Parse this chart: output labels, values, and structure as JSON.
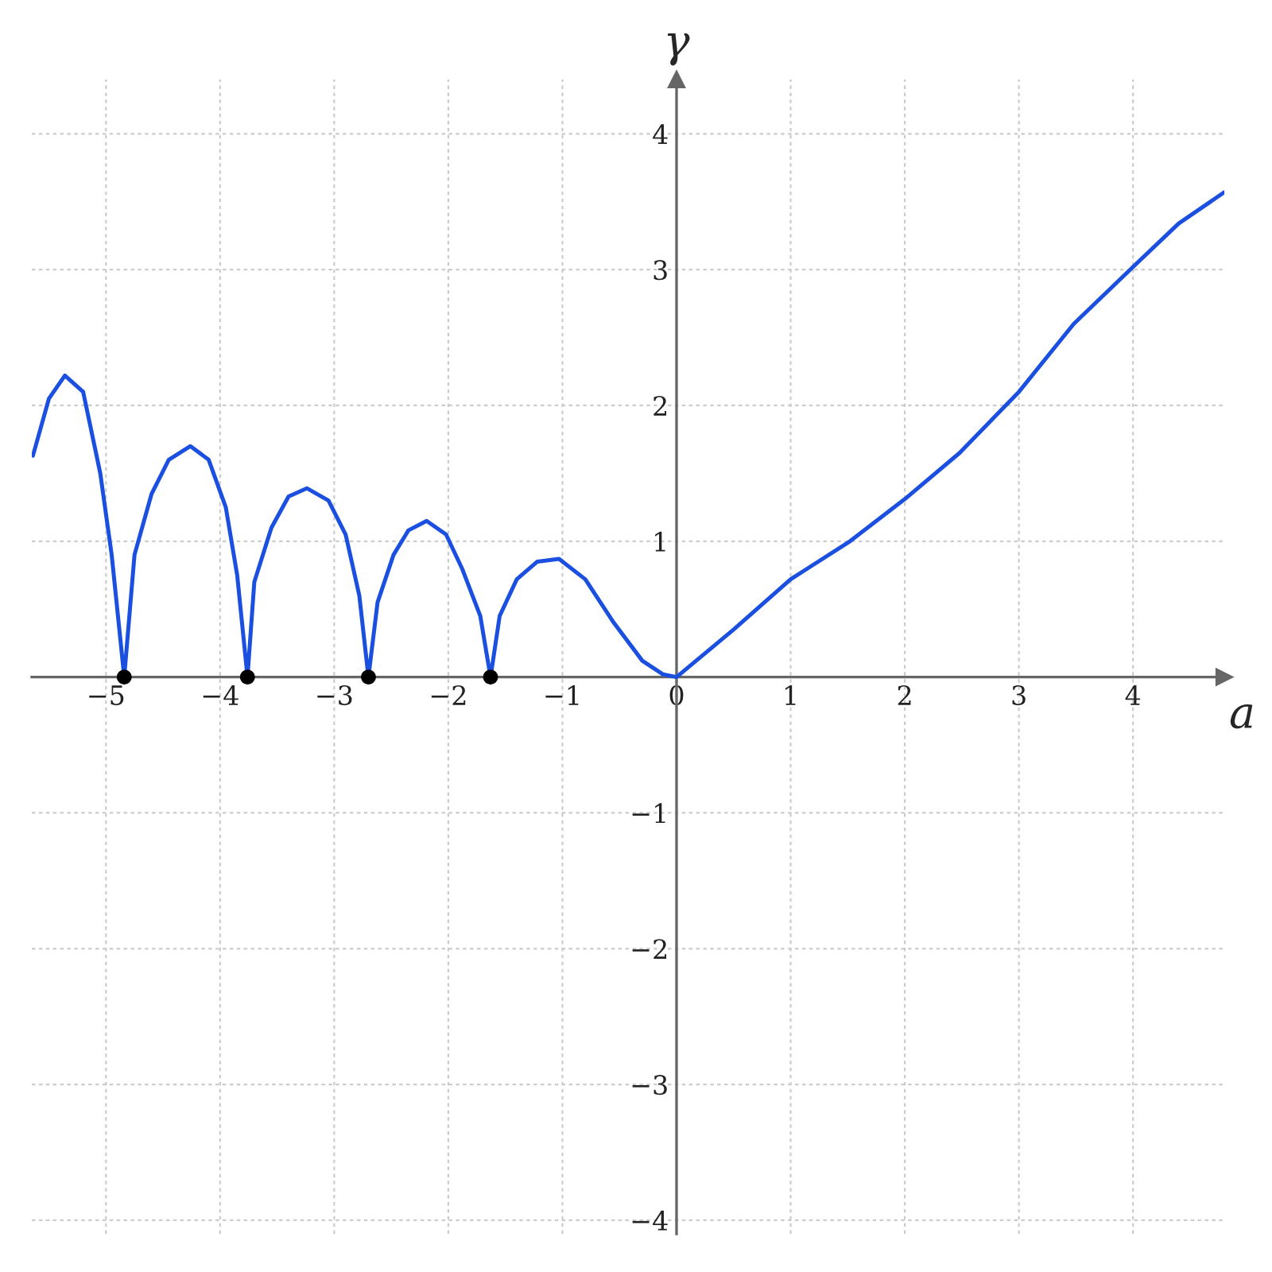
{
  "chart_data": {
    "type": "line",
    "xlabel": "a",
    "ylabel": "γ",
    "xlim": [
      -5.65,
      4.8
    ],
    "ylim": [
      -4.1,
      4.4
    ],
    "xticks": [
      -5,
      -4,
      -3,
      -2,
      -1,
      0,
      1,
      2,
      3,
      4
    ],
    "yticks": [
      -4,
      -3,
      -2,
      -1,
      1,
      2,
      3,
      4
    ],
    "grid": true,
    "legend": false,
    "series": [
      {
        "marker": "none",
        "color": "#1a4fe0",
        "x": [
          -5.64,
          -5.5,
          -5.36,
          -5.2,
          -5.05,
          -4.95,
          -4.84,
          -4.75,
          -4.6,
          -4.45,
          -4.26,
          -4.1,
          -3.95,
          -3.85,
          -3.76,
          -3.7,
          -3.55,
          -3.4,
          -3.24,
          -3.05,
          -2.9,
          -2.78,
          -2.7,
          -2.62,
          -2.48,
          -2.35,
          -2.19,
          -2.02,
          -1.88,
          -1.72,
          -1.63,
          -1.55,
          -1.4,
          -1.22,
          -1.03,
          -0.8,
          -0.55,
          -0.3,
          -0.12,
          0,
          0.5,
          1,
          1.52,
          2,
          2.48,
          3,
          3.48,
          4,
          4.4,
          4.8
        ],
        "values": [
          1.63,
          2.05,
          2.22,
          2.1,
          1.5,
          0.9,
          0,
          0.9,
          1.35,
          1.6,
          1.7,
          1.6,
          1.25,
          0.75,
          0,
          0.7,
          1.1,
          1.33,
          1.39,
          1.3,
          1.05,
          0.6,
          0,
          0.55,
          0.9,
          1.08,
          1.15,
          1.05,
          0.8,
          0.45,
          0,
          0.45,
          0.72,
          0.85,
          0.87,
          0.72,
          0.4,
          0.12,
          0.02,
          0,
          0.35,
          0.72,
          1.0,
          1.31,
          1.65,
          2.1,
          2.6,
          3.02,
          3.34,
          3.57
        ]
      },
      {
        "type": "scatter",
        "marker": "circle",
        "color": "#000000",
        "x": [
          -4.84,
          -3.76,
          -2.7,
          -1.63
        ],
        "values": [
          0,
          0,
          0,
          0
        ]
      }
    ]
  }
}
